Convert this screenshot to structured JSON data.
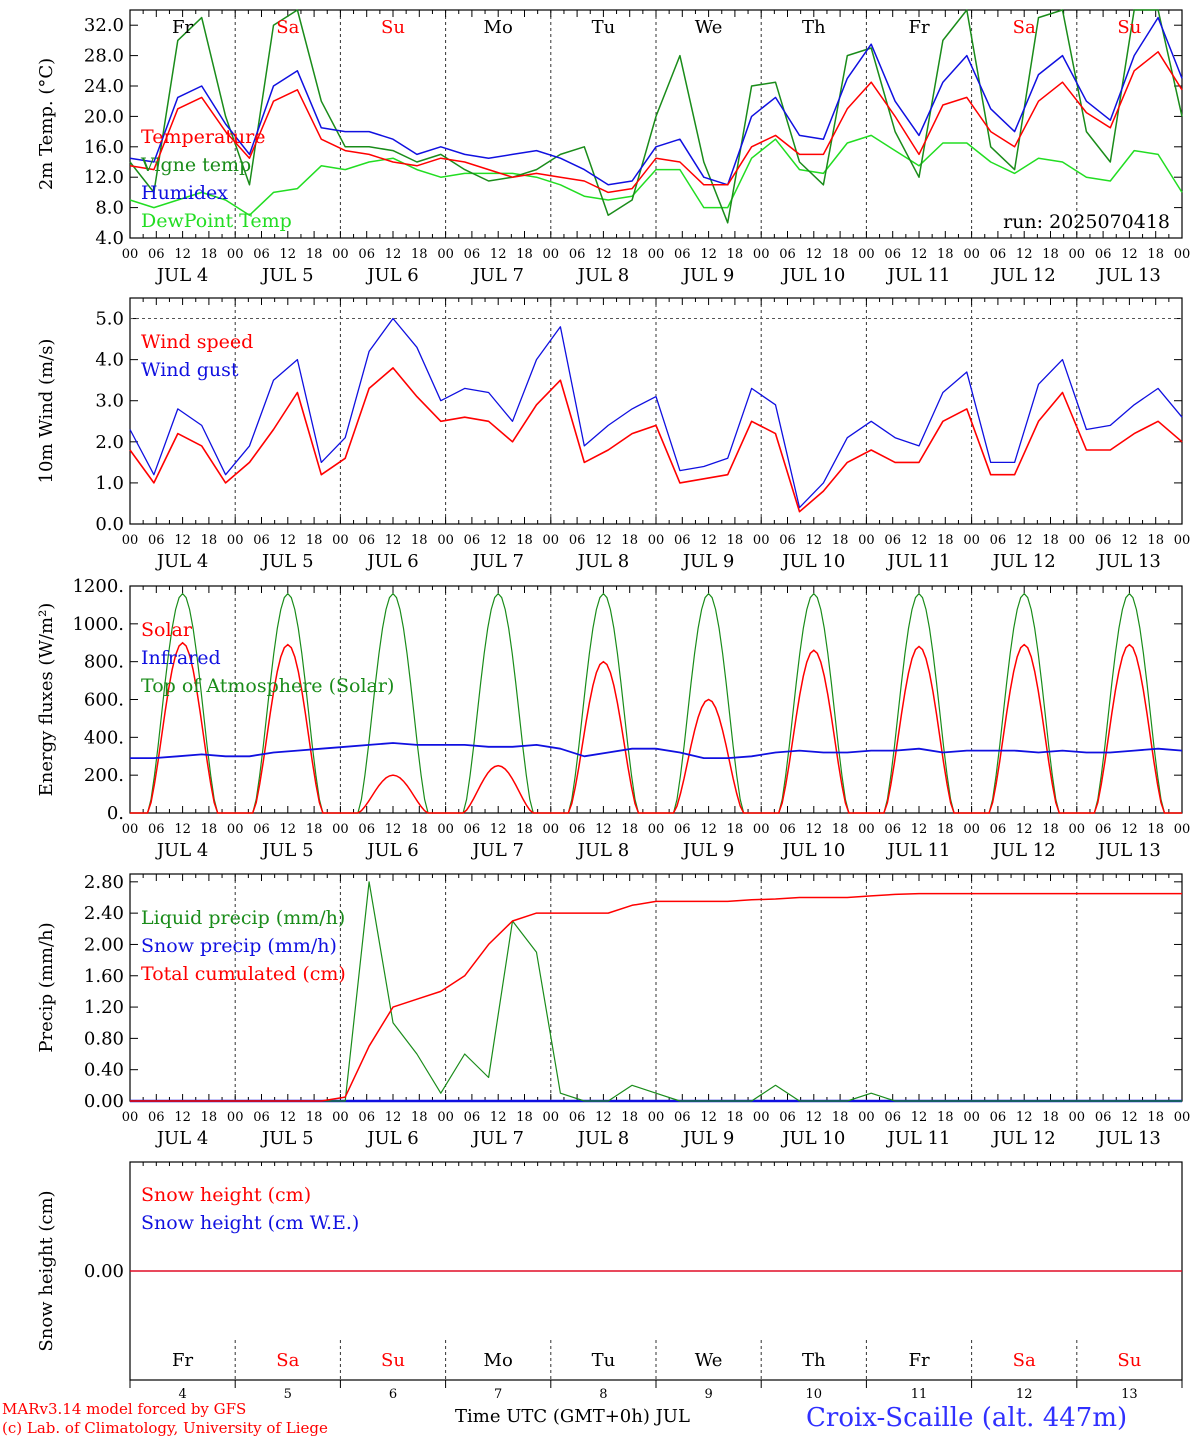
{
  "footer": {
    "credit_line1": "MARv3.14 model forced by GFS",
    "credit_line2": "(c) Lab. of Climatology, University of Liege",
    "time_axis": "Time UTC (GMT+0h) JUL",
    "station": "Croix-Scaille (alt. 447m)"
  },
  "colors": {
    "red": "#ff0000",
    "dark_green": "#1a8c1a",
    "blue": "#1010e0",
    "light_green": "#22dd22",
    "weekend": "#ff0000",
    "weekday": "#000000"
  },
  "chart_data": [
    {
      "type": "line",
      "id": "temperature",
      "ylabel": "2m Temp. (°C)",
      "ylim": [
        4,
        34
      ],
      "yticks": [
        "4.0",
        "8.0",
        "12.0",
        "16.0",
        "20.0",
        "24.0",
        "28.0",
        "32.0"
      ],
      "annotation": "run: 2025070418",
      "days_top": [
        "Fr",
        "Sa",
        "Su",
        "Mo",
        "Tu",
        "We",
        "Th",
        "Fr",
        "Sa",
        "Su"
      ],
      "hour_labels": [
        "00",
        "06",
        "12",
        "18"
      ],
      "date_labels": [
        "JUL  4",
        "JUL  5",
        "JUL  6",
        "JUL  7",
        "JUL  8",
        "JUL  9",
        "JUL 10",
        "JUL 11",
        "JUL 12",
        "JUL 13"
      ],
      "x_hours_step": 6,
      "series": [
        {
          "name": "Temperature",
          "color": "#ff0000",
          "values": [
            13.5,
            13.0,
            21.0,
            22.5,
            18.0,
            14.5,
            22.0,
            23.5,
            17.0,
            15.5,
            15.0,
            14.0,
            13.5,
            14.5,
            14.0,
            13.0,
            12.0,
            12.5,
            12.0,
            11.5,
            10.0,
            10.5,
            14.5,
            14.0,
            11.0,
            11.0,
            16.0,
            17.5,
            15.0,
            15.0,
            21.0,
            24.5,
            20.0,
            15.0,
            21.5,
            22.5,
            18.0,
            16.0,
            22.0,
            24.5,
            20.5,
            18.5,
            26.0,
            28.5,
            23.5
          ]
        },
        {
          "name": "Vigne temp",
          "color": "#1a8c1a",
          "values": [
            14.0,
            10.0,
            30.0,
            33.0,
            20.0,
            11.0,
            32.0,
            34.0,
            22.0,
            16.0,
            16.0,
            15.5,
            14.0,
            15.0,
            13.0,
            11.5,
            12.0,
            13.0,
            15.0,
            16.0,
            7.0,
            9.0,
            20.0,
            28.0,
            14.0,
            6.0,
            24.0,
            24.5,
            14.0,
            11.0,
            28.0,
            29.0,
            18.0,
            12.0,
            30.0,
            34.0,
            16.0,
            13.0,
            33.0,
            34.0,
            18.0,
            14.0,
            34.0,
            34.0,
            20.0
          ]
        },
        {
          "name": "Humidex",
          "color": "#1010e0",
          "values": [
            14.5,
            14.0,
            22.5,
            24.0,
            19.0,
            15.0,
            24.0,
            26.0,
            18.5,
            18.0,
            18.0,
            17.0,
            15.0,
            16.0,
            15.0,
            14.5,
            15.0,
            15.5,
            14.5,
            13.0,
            11.0,
            11.5,
            16.0,
            17.0,
            12.0,
            11.0,
            20.0,
            22.5,
            17.5,
            17.0,
            25.0,
            29.5,
            22.0,
            17.5,
            24.5,
            28.0,
            21.0,
            18.0,
            25.5,
            28.0,
            22.0,
            19.5,
            28.0,
            33.0,
            25.0
          ]
        },
        {
          "name": "DewPoint Temp",
          "color": "#22dd22",
          "values": [
            9.0,
            8.0,
            9.0,
            10.0,
            9.0,
            7.0,
            10.0,
            10.5,
            13.5,
            13.0,
            14.0,
            14.5,
            13.0,
            12.0,
            12.5,
            12.5,
            12.5,
            12.0,
            11.0,
            9.5,
            9.0,
            9.5,
            13.0,
            13.0,
            8.0,
            8.0,
            14.5,
            17.0,
            13.0,
            12.5,
            16.5,
            17.5,
            15.5,
            13.5,
            16.5,
            16.5,
            14.0,
            12.5,
            14.5,
            14.0,
            12.0,
            11.5,
            15.5,
            15.0,
            10.0
          ]
        }
      ]
    },
    {
      "type": "line",
      "id": "wind",
      "ylabel": "10m Wind (m/s)",
      "ylim": [
        0,
        5.5
      ],
      "yticks": [
        "0.0",
        "1.0",
        "2.0",
        "3.0",
        "4.0",
        "5.0"
      ],
      "hour_labels": [
        "00",
        "06",
        "12",
        "18"
      ],
      "date_labels": [
        "JUL  4",
        "JUL  5",
        "JUL  6",
        "JUL  7",
        "JUL  8",
        "JUL  9",
        "JUL 10",
        "JUL 11",
        "JUL 12",
        "JUL 13"
      ],
      "x_hours_step": 6,
      "series": [
        {
          "name": "Wind speed",
          "color": "#ff0000",
          "values": [
            1.8,
            1.0,
            2.2,
            1.9,
            1.0,
            1.5,
            2.3,
            3.2,
            1.2,
            1.6,
            3.3,
            3.8,
            3.1,
            2.5,
            2.6,
            2.5,
            2.0,
            2.9,
            3.5,
            1.5,
            1.8,
            2.2,
            2.4,
            1.0,
            1.1,
            1.2,
            2.5,
            2.2,
            0.3,
            0.8,
            1.5,
            1.8,
            1.5,
            1.5,
            2.5,
            2.8,
            1.2,
            1.2,
            2.5,
            3.2,
            1.8,
            1.8,
            2.2,
            2.5,
            2.0
          ]
        },
        {
          "name": "Wind gust",
          "color": "#1010e0",
          "values": [
            2.3,
            1.2,
            2.8,
            2.4,
            1.2,
            1.9,
            3.5,
            4.0,
            1.5,
            2.1,
            4.2,
            5.0,
            4.3,
            3.0,
            3.3,
            3.2,
            2.5,
            4.0,
            4.8,
            1.9,
            2.4,
            2.8,
            3.1,
            1.3,
            1.4,
            1.6,
            3.3,
            2.9,
            0.4,
            1.0,
            2.1,
            2.5,
            2.1,
            1.9,
            3.2,
            3.7,
            1.5,
            1.5,
            3.4,
            4.0,
            2.3,
            2.4,
            2.9,
            3.3,
            2.6
          ]
        }
      ]
    },
    {
      "type": "line",
      "id": "energy",
      "ylabel": "Energy fluxes (W/m²)",
      "ylim": [
        0,
        1200
      ],
      "yticks": [
        "0.",
        "200.",
        "400.",
        "600.",
        "800.",
        "1000.",
        "1200."
      ],
      "hour_labels": [
        "00",
        "06",
        "12",
        "18"
      ],
      "date_labels": [
        "JUL  4",
        "JUL  5",
        "JUL  6",
        "JUL  7",
        "JUL  8",
        "JUL  9",
        "JUL 10",
        "JUL 11",
        "JUL 12",
        "JUL 13"
      ],
      "daily_peak_solar": [
        900,
        890,
        200,
        250,
        800,
        600,
        860,
        880,
        890,
        890
      ],
      "daily_peak_toa": 1160,
      "infrared_values": [
        290,
        290,
        300,
        310,
        300,
        300,
        320,
        330,
        340,
        350,
        360,
        370,
        360,
        360,
        360,
        350,
        350,
        360,
        340,
        300,
        320,
        340,
        340,
        320,
        290,
        290,
        300,
        320,
        330,
        320,
        320,
        330,
        330,
        340,
        320,
        330,
        330,
        330,
        320,
        330,
        320,
        320,
        330,
        340,
        330
      ],
      "series": [
        {
          "name": "Solar",
          "color": "#ff0000"
        },
        {
          "name": "Infrared",
          "color": "#1010e0"
        },
        {
          "name": "Top of Atmosphere (Solar)",
          "color": "#1a8c1a"
        }
      ]
    },
    {
      "type": "line",
      "id": "precip",
      "ylabel": "Precip (mm/h)",
      "ylim": [
        0,
        2.9
      ],
      "yticks": [
        "0.00",
        "0.40",
        "0.80",
        "1.20",
        "1.60",
        "2.00",
        "2.40",
        "2.80"
      ],
      "hour_labels": [
        "00",
        "06",
        "12",
        "18"
      ],
      "date_labels": [
        "JUL  4",
        "JUL  5",
        "JUL  6",
        "JUL  7",
        "JUL  8",
        "JUL  9",
        "JUL 10",
        "JUL 11",
        "JUL 12",
        "JUL 13"
      ],
      "series": [
        {
          "name": "Liquid precip (mm/h)",
          "color": "#1a8c1a",
          "values": [
            0,
            0,
            0,
            0,
            0,
            0,
            0,
            0,
            0,
            0,
            2.8,
            1.0,
            0.6,
            0.1,
            0.6,
            0.3,
            2.3,
            1.9,
            0.1,
            0.0,
            0.0,
            0.2,
            0.1,
            0.0,
            0.0,
            0.0,
            0.0,
            0.2,
            0.0,
            0.0,
            0.0,
            0.1,
            0.0,
            0.0,
            0.0,
            0.0,
            0.0,
            0.0,
            0.0,
            0.0,
            0.0,
            0.0,
            0.0,
            0.0,
            0.0
          ]
        },
        {
          "name": "Snow precip (mm/h)",
          "color": "#1010e0",
          "values": [
            0,
            0,
            0,
            0,
            0,
            0,
            0,
            0,
            0,
            0,
            0,
            0,
            0,
            0,
            0,
            0,
            0,
            0,
            0,
            0,
            0,
            0,
            0,
            0,
            0,
            0,
            0,
            0,
            0,
            0,
            0,
            0,
            0,
            0,
            0,
            0,
            0,
            0,
            0,
            0,
            0,
            0,
            0,
            0,
            0
          ]
        },
        {
          "name": "Total cumulated (cm)",
          "color": "#ff0000",
          "values": [
            0,
            0,
            0,
            0,
            0,
            0,
            0,
            0,
            0,
            0.05,
            0.7,
            1.2,
            1.3,
            1.4,
            1.6,
            2.0,
            2.3,
            2.4,
            2.4,
            2.4,
            2.4,
            2.5,
            2.55,
            2.55,
            2.55,
            2.55,
            2.57,
            2.58,
            2.6,
            2.6,
            2.6,
            2.62,
            2.64,
            2.65,
            2.65,
            2.65,
            2.65,
            2.65,
            2.65,
            2.65,
            2.65,
            2.65,
            2.65,
            2.65,
            2.65
          ]
        }
      ]
    },
    {
      "type": "line",
      "id": "snow",
      "ylabel": "Snow height (cm)",
      "ylim": [
        -1,
        1
      ],
      "yticks": [
        "0.00"
      ],
      "days_bottom": [
        "Fr",
        "Sa",
        "Su",
        "Mo",
        "Tu",
        "We",
        "Th",
        "Fr",
        "Sa",
        "Su"
      ],
      "day_numbers": [
        "4",
        "5",
        "6",
        "7",
        "8",
        "9",
        "10",
        "11",
        "12",
        "13"
      ],
      "series": [
        {
          "name": "Snow height (cm)",
          "color": "#ff0000",
          "values": [
            0,
            0
          ]
        },
        {
          "name": "Snow height (cm W.E.)",
          "color": "#1010e0",
          "values": [
            0,
            0
          ]
        }
      ]
    }
  ]
}
